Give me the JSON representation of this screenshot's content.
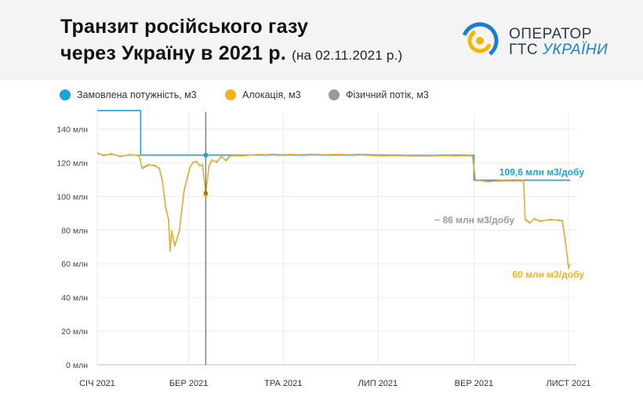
{
  "header": {
    "title_line1": "Транзит російського газу",
    "title_line2": "через Україну в 2021 р.",
    "subtitle": "(на 02.11.2021 р.)"
  },
  "logo": {
    "line1": "ОПЕРАТОР",
    "line2_prefix": "ГТС",
    "line2_accent": "УКРАЇНИ",
    "colors": {
      "sun": "#f5b800",
      "ring": "#1a7fd0",
      "text": "#2d3a48"
    }
  },
  "legend": [
    {
      "label": "Замовлена потужність, м3",
      "color": "#1ba3d6"
    },
    {
      "label": "Алокація, м3",
      "color": "#f3b21b"
    },
    {
      "label": "Фізичний потік, м3",
      "color": "#9a9a9a"
    }
  ],
  "chart_data": {
    "type": "line",
    "ylim": [
      0,
      150
    ],
    "y_ticks": [
      0,
      20,
      40,
      60,
      80,
      100,
      120,
      140
    ],
    "y_tick_labels": [
      "0 млн",
      "20 млн",
      "40 млн",
      "60 млн",
      "80 млн",
      "100 млн",
      "120 млн",
      "140 млн"
    ],
    "xlim": [
      "2021-01-01",
      "2021-11-02"
    ],
    "x_ticks": [
      "2021-01-01",
      "2021-03-01",
      "2021-05-01",
      "2021-07-01",
      "2021-09-01",
      "2021-11-01"
    ],
    "x_tick_labels": [
      "СІЧ 2021",
      "БЕР 2021",
      "ТРА 2021",
      "ЛИП 2021",
      "ВЕР 2021",
      "ЛИСТ 2021"
    ],
    "cursor_date": "2021-03-12",
    "series": [
      {
        "name": "Замовлена потужність, м3",
        "color": "#1ba3d6",
        "points": [
          [
            "2021-01-01",
            151
          ],
          [
            "2021-01-29",
            151
          ],
          [
            "2021-01-29",
            124.5
          ],
          [
            "2021-09-01",
            124.5
          ],
          [
            "2021-09-01",
            109.6
          ],
          [
            "2021-11-02",
            109.6
          ]
        ]
      },
      {
        "name": "Алокація, м3",
        "color": "#f3b21b",
        "points": [
          [
            "2021-01-01",
            126
          ],
          [
            "2021-01-05",
            124
          ],
          [
            "2021-01-10",
            125.5
          ],
          [
            "2021-01-16",
            123.5
          ],
          [
            "2021-01-22",
            125
          ],
          [
            "2021-01-28",
            124
          ],
          [
            "2021-01-30",
            117
          ],
          [
            "2021-02-03",
            119
          ],
          [
            "2021-02-07",
            118
          ],
          [
            "2021-02-10",
            117
          ],
          [
            "2021-02-12",
            110
          ],
          [
            "2021-02-14",
            95
          ],
          [
            "2021-02-16",
            86
          ],
          [
            "2021-02-17",
            68
          ],
          [
            "2021-02-18",
            80
          ],
          [
            "2021-02-20",
            71
          ],
          [
            "2021-02-23",
            80
          ],
          [
            "2021-02-26",
            104
          ],
          [
            "2021-02-28",
            111
          ],
          [
            "2021-03-02",
            118
          ],
          [
            "2021-03-04",
            120
          ],
          [
            "2021-03-06",
            121
          ],
          [
            "2021-03-08",
            118
          ],
          [
            "2021-03-10",
            119
          ],
          [
            "2021-03-12",
            101
          ],
          [
            "2021-03-14",
            118
          ],
          [
            "2021-03-16",
            122
          ],
          [
            "2021-03-19",
            120
          ],
          [
            "2021-03-22",
            124
          ],
          [
            "2021-03-25",
            121
          ],
          [
            "2021-03-28",
            124
          ],
          [
            "2021-04-05",
            124
          ],
          [
            "2021-04-15",
            125
          ],
          [
            "2021-04-25",
            124.5
          ],
          [
            "2021-05-05",
            125
          ],
          [
            "2021-05-20",
            124.5
          ],
          [
            "2021-06-05",
            125
          ],
          [
            "2021-06-20",
            124.5
          ],
          [
            "2021-07-05",
            124
          ],
          [
            "2021-07-20",
            124.5
          ],
          [
            "2021-08-05",
            124.5
          ],
          [
            "2021-08-20",
            124
          ],
          [
            "2021-08-31",
            124.5
          ],
          [
            "2021-09-02",
            110
          ],
          [
            "2021-09-10",
            108.5
          ],
          [
            "2021-09-18",
            109.5
          ],
          [
            "2021-09-26",
            109
          ],
          [
            "2021-10-03",
            109.5
          ],
          [
            "2021-10-04",
            86
          ],
          [
            "2021-10-07",
            84
          ],
          [
            "2021-10-10",
            87
          ],
          [
            "2021-10-14",
            85
          ],
          [
            "2021-10-20",
            86.5
          ],
          [
            "2021-10-26",
            85.5
          ],
          [
            "2021-10-28",
            86
          ],
          [
            "2021-10-30",
            74
          ],
          [
            "2021-11-01",
            57
          ],
          [
            "2021-11-02",
            60
          ]
        ]
      },
      {
        "name": "Фізичний потік, м3",
        "color": "#9a9a9a",
        "points": [
          [
            "2021-01-01",
            125.5
          ],
          [
            "2021-01-05",
            124.5
          ],
          [
            "2021-01-10",
            125
          ],
          [
            "2021-01-16",
            124
          ],
          [
            "2021-01-22",
            124.5
          ],
          [
            "2021-01-28",
            124.5
          ],
          [
            "2021-01-30",
            116.5
          ],
          [
            "2021-02-03",
            118.5
          ],
          [
            "2021-02-07",
            118.5
          ],
          [
            "2021-02-10",
            116.5
          ],
          [
            "2021-02-12",
            109.5
          ],
          [
            "2021-02-14",
            94
          ],
          [
            "2021-02-16",
            86.5
          ],
          [
            "2021-02-17",
            67.5
          ],
          [
            "2021-02-18",
            79
          ],
          [
            "2021-02-20",
            70.5
          ],
          [
            "2021-02-23",
            79.5
          ],
          [
            "2021-02-26",
            103
          ],
          [
            "2021-02-28",
            110.5
          ],
          [
            "2021-03-02",
            117.5
          ],
          [
            "2021-03-04",
            120.5
          ],
          [
            "2021-03-06",
            120.5
          ],
          [
            "2021-03-08",
            118.5
          ],
          [
            "2021-03-10",
            118.5
          ],
          [
            "2021-03-12",
            102
          ],
          [
            "2021-03-14",
            117.5
          ],
          [
            "2021-03-16",
            121.5
          ],
          [
            "2021-03-19",
            120.5
          ],
          [
            "2021-03-22",
            123.5
          ],
          [
            "2021-03-25",
            121.5
          ],
          [
            "2021-03-28",
            124.5
          ],
          [
            "2021-04-05",
            124.5
          ],
          [
            "2021-04-15",
            124.5
          ],
          [
            "2021-04-25",
            125
          ],
          [
            "2021-05-05",
            124.5
          ],
          [
            "2021-05-20",
            125
          ],
          [
            "2021-06-05",
            124.5
          ],
          [
            "2021-06-20",
            125
          ],
          [
            "2021-07-05",
            124.5
          ],
          [
            "2021-07-20",
            124
          ],
          [
            "2021-08-05",
            124
          ],
          [
            "2021-08-20",
            124.5
          ],
          [
            "2021-08-31",
            124
          ],
          [
            "2021-09-02",
            109.5
          ],
          [
            "2021-09-10",
            109
          ],
          [
            "2021-09-18",
            109
          ],
          [
            "2021-09-26",
            109.5
          ],
          [
            "2021-10-03",
            109
          ],
          [
            "2021-10-04",
            86.5
          ],
          [
            "2021-10-07",
            84.5
          ],
          [
            "2021-10-10",
            86.5
          ],
          [
            "2021-10-14",
            85.5
          ],
          [
            "2021-10-20",
            86
          ],
          [
            "2021-10-26",
            86
          ],
          [
            "2021-10-28",
            85.5
          ],
          [
            "2021-10-30",
            73
          ],
          [
            "2021-11-01",
            58
          ]
        ]
      }
    ],
    "annotations": [
      {
        "text": "109,6 млн м3/добу",
        "color": "#1ba3d6",
        "x": "2021-11-02",
        "y": 109.6
      },
      {
        "text": "~ 86 млн м3/добу",
        "color": "#9a9a9a",
        "x": "2021-10-03",
        "y": 86
      },
      {
        "text": "60 млн м3/добу",
        "color": "#f3b21b",
        "x": "2021-11-02",
        "y": 60
      }
    ]
  }
}
